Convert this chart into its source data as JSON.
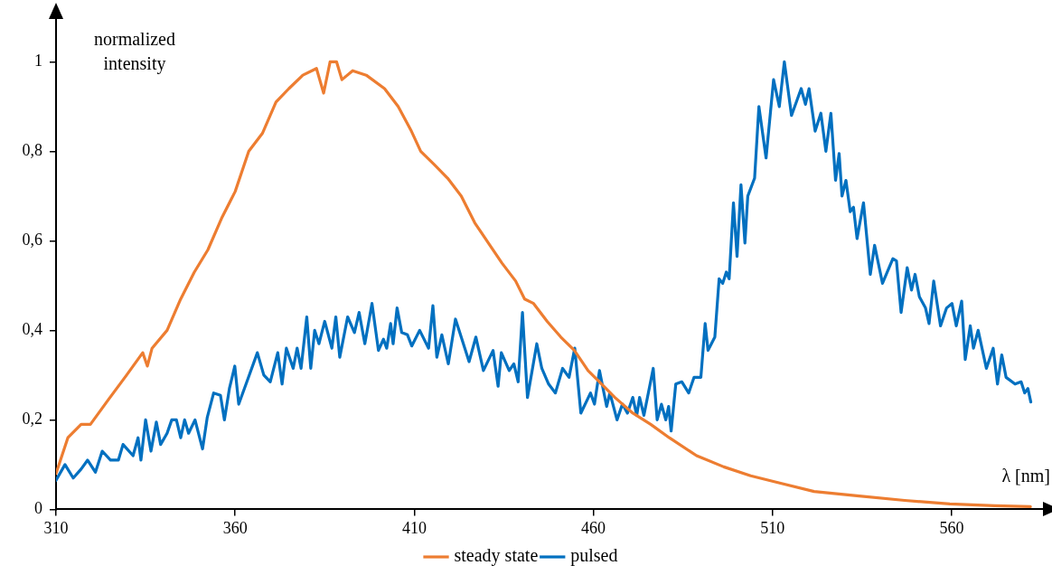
{
  "chart_data": {
    "type": "line",
    "xlabel": "λ [nm]",
    "ylabel": "normalized intensity",
    "xlim": [
      310,
      586
    ],
    "xticks": [
      310,
      360,
      410,
      460,
      510,
      560
    ],
    "ylim": [
      0,
      1.1
    ],
    "yticks": [
      0,
      {
        "value": 0.2,
        "label": "0,2"
      },
      {
        "value": 0.4,
        "label": "0,4"
      },
      {
        "value": 0.6,
        "label": "0,6"
      },
      {
        "value": 0.8,
        "label": "0,8"
      },
      1
    ],
    "grid": false,
    "legend": "bottom",
    "marker": "none",
    "line_style": "solid",
    "series": [
      {
        "name": "steady state",
        "color": "#ed7d31",
        "x": [
          310,
          313.3,
          317,
          319.6,
          324.6,
          329.7,
          334.2,
          335.5,
          336.8,
          341,
          344.8,
          348.6,
          352.4,
          356.2,
          360,
          363.8,
          367.6,
          371.4,
          375,
          378.9,
          382.7,
          384.7,
          386.5,
          388.3,
          389.8,
          392.8,
          396.6,
          401.7,
          405.5,
          409.2,
          411.8,
          415.6,
          419.3,
          423.1,
          426.9,
          430.7,
          434.5,
          438.3,
          440.8,
          443.3,
          447.1,
          450.9,
          454.7,
          458.5,
          462.3,
          466,
          471,
          476,
          481.2,
          488.8,
          496.4,
          503.9,
          511.5,
          521.6,
          534.2,
          546.9,
          559.5,
          572,
          582
        ],
        "values": [
          0.08,
          0.16,
          0.19,
          0.19,
          0.245,
          0.3,
          0.35,
          0.32,
          0.36,
          0.4,
          0.47,
          0.53,
          0.58,
          0.65,
          0.71,
          0.8,
          0.84,
          0.91,
          0.94,
          0.97,
          0.985,
          0.93,
          1,
          1,
          0.96,
          0.98,
          0.97,
          0.94,
          0.9,
          0.845,
          0.8,
          0.77,
          0.74,
          0.7,
          0.64,
          0.595,
          0.55,
          0.51,
          0.47,
          0.46,
          0.42,
          0.385,
          0.355,
          0.31,
          0.28,
          0.25,
          0.215,
          0.19,
          0.16,
          0.12,
          0.095,
          0.075,
          0.06,
          0.04,
          0.03,
          0.02,
          0.012,
          0.008,
          0.006
        ]
      },
      {
        "name": "pulsed",
        "color": "#0070c0",
        "x": [
          310,
          312.5,
          314.8,
          317,
          318.8,
          321,
          322.9,
          325.2,
          327.4,
          328.7,
          331.5,
          332.9,
          333.7,
          335,
          336.5,
          338,
          339.2,
          341,
          342.3,
          343.6,
          344.8,
          345.9,
          347,
          348.8,
          350.9,
          352.2,
          354,
          355.9,
          357,
          358.4,
          359.9,
          361,
          363.5,
          366.2,
          368,
          369.8,
          371.9,
          373.1,
          374.3,
          376.2,
          377.3,
          378.4,
          380,
          381.1,
          382.2,
          383.4,
          385,
          387,
          388.1,
          389.2,
          391.4,
          393.3,
          394.6,
          396.2,
          398.2,
          400,
          401.4,
          402.3,
          403.4,
          404.1,
          405.2,
          406.5,
          408.1,
          409.3,
          411.5,
          414,
          415.2,
          416.3,
          417.7,
          419.5,
          421.5,
          425.3,
          427.2,
          429.3,
          432,
          433.4,
          434.3,
          436.5,
          437.8,
          439,
          440.2,
          441.6,
          444.2,
          445.6,
          447.5,
          449.4,
          451.4,
          453.2,
          454.8,
          456.5,
          459.2,
          460.3,
          461.7,
          463.7,
          464.6,
          466.6,
          468.1,
          469.5,
          471,
          472.1,
          472.9,
          474.1,
          476.7,
          477.8,
          479,
          480.2,
          481,
          481.7,
          483,
          484.7,
          486.6,
          488.1,
          490,
          491.2,
          492,
          493.9,
          495.1,
          496.1,
          497.1,
          497.9,
          499.1,
          500.1,
          501.2,
          502.3,
          503.1,
          505,
          506.2,
          508.2,
          510.3,
          511.9,
          513.3,
          515.3,
          518,
          519.2,
          520.2,
          521.9,
          523.5,
          524.9,
          526.3,
          527.6,
          528.6,
          529.4,
          530.5,
          531.7,
          532.6,
          533.6,
          535.4,
          537.3,
          538.5,
          540.7,
          543.6,
          544.6,
          545.9,
          547.6,
          548.8,
          549.8,
          551,
          552.7,
          553.7,
          555,
          556.9,
          558.6,
          560.1,
          561.3,
          562.8,
          563.8,
          565.2,
          566.1,
          567.4,
          569.7,
          571.6,
          572.8,
          574,
          575.2,
          577.7,
          579.4,
          580.4,
          581.3,
          582.1
        ],
        "values": [
          0.065,
          0.1,
          0.07,
          0.09,
          0.11,
          0.083,
          0.13,
          0.11,
          0.11,
          0.145,
          0.12,
          0.16,
          0.11,
          0.2,
          0.13,
          0.195,
          0.145,
          0.17,
          0.2,
          0.2,
          0.16,
          0.2,
          0.17,
          0.2,
          0.135,
          0.205,
          0.26,
          0.255,
          0.2,
          0.27,
          0.32,
          0.235,
          0.29,
          0.35,
          0.3,
          0.285,
          0.35,
          0.28,
          0.36,
          0.315,
          0.36,
          0.315,
          0.43,
          0.315,
          0.4,
          0.37,
          0.42,
          0.36,
          0.43,
          0.34,
          0.43,
          0.395,
          0.44,
          0.37,
          0.46,
          0.355,
          0.38,
          0.36,
          0.415,
          0.37,
          0.45,
          0.395,
          0.39,
          0.365,
          0.4,
          0.36,
          0.455,
          0.34,
          0.39,
          0.325,
          0.425,
          0.33,
          0.385,
          0.31,
          0.355,
          0.275,
          0.35,
          0.31,
          0.325,
          0.285,
          0.44,
          0.25,
          0.37,
          0.315,
          0.28,
          0.26,
          0.315,
          0.295,
          0.36,
          0.215,
          0.26,
          0.235,
          0.31,
          0.23,
          0.26,
          0.2,
          0.235,
          0.215,
          0.25,
          0.21,
          0.25,
          0.21,
          0.315,
          0.2,
          0.235,
          0.2,
          0.23,
          0.175,
          0.28,
          0.285,
          0.26,
          0.295,
          0.295,
          0.415,
          0.355,
          0.385,
          0.515,
          0.505,
          0.53,
          0.515,
          0.685,
          0.565,
          0.725,
          0.595,
          0.7,
          0.74,
          0.9,
          0.785,
          0.96,
          0.9,
          1,
          0.88,
          0.94,
          0.905,
          0.94,
          0.845,
          0.885,
          0.8,
          0.885,
          0.735,
          0.795,
          0.7,
          0.735,
          0.665,
          0.675,
          0.605,
          0.685,
          0.525,
          0.59,
          0.505,
          0.56,
          0.555,
          0.44,
          0.54,
          0.49,
          0.525,
          0.475,
          0.45,
          0.415,
          0.51,
          0.41,
          0.45,
          0.46,
          0.41,
          0.465,
          0.335,
          0.41,
          0.36,
          0.4,
          0.315,
          0.36,
          0.28,
          0.345,
          0.295,
          0.28,
          0.285,
          0.26,
          0.27,
          0.24
        ]
      }
    ]
  }
}
